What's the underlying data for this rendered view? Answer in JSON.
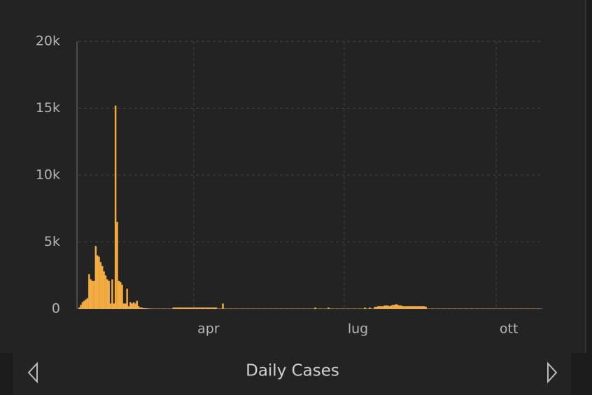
{
  "chart_data": {
    "type": "bar",
    "title": "Daily Cases",
    "color": "#f5ad42",
    "categories": [
      null,
      null,
      null,
      null,
      null,
      null,
      null,
      null,
      null,
      null,
      null,
      null,
      null,
      null,
      null,
      null,
      null,
      null,
      null,
      null,
      null,
      null,
      null,
      null,
      null,
      null,
      null,
      null,
      null,
      null,
      null,
      null,
      null,
      null,
      null,
      null,
      null,
      null,
      null,
      null,
      null,
      null,
      null,
      null,
      null,
      null,
      null,
      null,
      null,
      null,
      null,
      null,
      null,
      null,
      null,
      null,
      null,
      null,
      null,
      null,
      null,
      null,
      null,
      null,
      null,
      null,
      null,
      null,
      null,
      null,
      "apr",
      null,
      null,
      null,
      null,
      null,
      null,
      null,
      null,
      null,
      null,
      null,
      null,
      null,
      null,
      null,
      null,
      null,
      null,
      null,
      null,
      null,
      null,
      null,
      null,
      null,
      null,
      null,
      null,
      null,
      null,
      null,
      null,
      null,
      null,
      null,
      null,
      null,
      null,
      null,
      null,
      null,
      null,
      null,
      null,
      null,
      null,
      null,
      null,
      null,
      null,
      null,
      null,
      null,
      null,
      null,
      null,
      null,
      null,
      null,
      null,
      null,
      null,
      null,
      null,
      null,
      null,
      null,
      null,
      null,
      null,
      null,
      null,
      null,
      null,
      null,
      null,
      null,
      null,
      null,
      null,
      null,
      null,
      null,
      null,
      null,
      null,
      null,
      null,
      null,
      null,
      "lug",
      null,
      null,
      null,
      null,
      null,
      null,
      null,
      null,
      null,
      null,
      null,
      null,
      null,
      null,
      null,
      null,
      null,
      null,
      null,
      null,
      null,
      null,
      null,
      null,
      null,
      null,
      null,
      null,
      null,
      null,
      null,
      null,
      null,
      null,
      null,
      null,
      null,
      null,
      null,
      null,
      null,
      null,
      null,
      null,
      null,
      null,
      null,
      null,
      null,
      null,
      null,
      null,
      null,
      null,
      null,
      null,
      null,
      null,
      null,
      null,
      null,
      null,
      null,
      null,
      null,
      null,
      null,
      null,
      null,
      null,
      null,
      null,
      null,
      null,
      null,
      null,
      null,
      null,
      null,
      null,
      null,
      null,
      null,
      null,
      null,
      null,
      null,
      null,
      null,
      null,
      null,
      "ott",
      null,
      null,
      null,
      null,
      null,
      null,
      null,
      null,
      null,
      null,
      null,
      null,
      null,
      null,
      null,
      null,
      null,
      null,
      null,
      null,
      null,
      null,
      null,
      null,
      null,
      null,
      null
    ],
    "values": [
      100,
      300,
      500,
      600,
      700,
      800,
      2600,
      2200,
      2100,
      2100,
      4700,
      4000,
      3900,
      3500,
      3200,
      2800,
      2500,
      2200,
      2100,
      400,
      2200,
      400,
      15200,
      6500,
      2100,
      2000,
      1800,
      400,
      400,
      1500,
      200,
      500,
      400,
      500,
      400,
      600,
      200,
      100,
      100,
      50,
      50,
      40,
      30,
      30,
      20,
      20,
      20,
      20,
      20,
      20,
      20,
      20,
      20,
      20,
      20,
      20,
      20,
      100,
      100,
      100,
      100,
      100,
      100,
      100,
      100,
      100,
      100,
      100,
      100,
      100,
      100,
      100,
      100,
      100,
      100,
      100,
      100,
      100,
      100,
      100,
      100,
      100,
      100,
      100,
      20,
      20,
      20,
      400,
      20,
      20,
      20,
      20,
      20,
      20,
      20,
      20,
      20,
      20,
      20,
      20,
      20,
      20,
      20,
      20,
      20,
      20,
      20,
      20,
      20,
      20,
      20,
      20,
      20,
      20,
      20,
      20,
      20,
      20,
      20,
      20,
      20,
      20,
      20,
      20,
      20,
      20,
      20,
      20,
      20,
      20,
      20,
      20,
      20,
      20,
      20,
      20,
      20,
      20,
      20,
      20,
      20,
      20,
      20,
      100,
      20,
      20,
      20,
      20,
      20,
      20,
      20,
      100,
      20,
      20,
      20,
      20,
      20,
      20,
      20,
      20,
      20,
      20,
      20,
      20,
      20,
      20,
      20,
      20,
      20,
      20,
      20,
      20,
      20,
      100,
      20,
      20,
      100,
      20,
      20,
      150,
      150,
      200,
      200,
      200,
      200,
      250,
      250,
      250,
      200,
      250,
      300,
      300,
      350,
      300,
      250,
      250,
      200,
      200,
      200,
      200,
      200,
      200,
      200,
      200,
      200,
      200,
      200,
      200,
      200,
      200,
      150,
      20,
      20,
      20,
      20,
      20,
      20,
      20,
      20,
      20,
      20,
      20,
      20,
      20,
      20,
      20,
      20,
      20,
      20,
      20,
      20,
      20,
      20,
      20,
      20,
      20,
      20,
      20,
      20,
      20,
      20,
      20,
      20,
      20,
      20,
      20,
      20,
      20,
      20,
      20,
      20,
      20,
      20,
      20,
      20,
      20,
      20,
      20,
      20,
      20,
      20,
      20,
      20,
      20,
      20,
      20,
      20,
      20,
      20,
      20,
      20,
      20,
      20,
      20,
      20,
      20,
      20,
      20,
      20,
      20,
      20
    ],
    "ylim": [
      0,
      20000
    ],
    "yticks": [
      0,
      {
        "value": 5000,
        "label": "5k"
      },
      {
        "value": 10000,
        "label": "10k"
      },
      {
        "value": 15000,
        "label": "15k"
      },
      {
        "value": 20000,
        "label": "20k"
      }
    ],
    "grid": true
  }
}
